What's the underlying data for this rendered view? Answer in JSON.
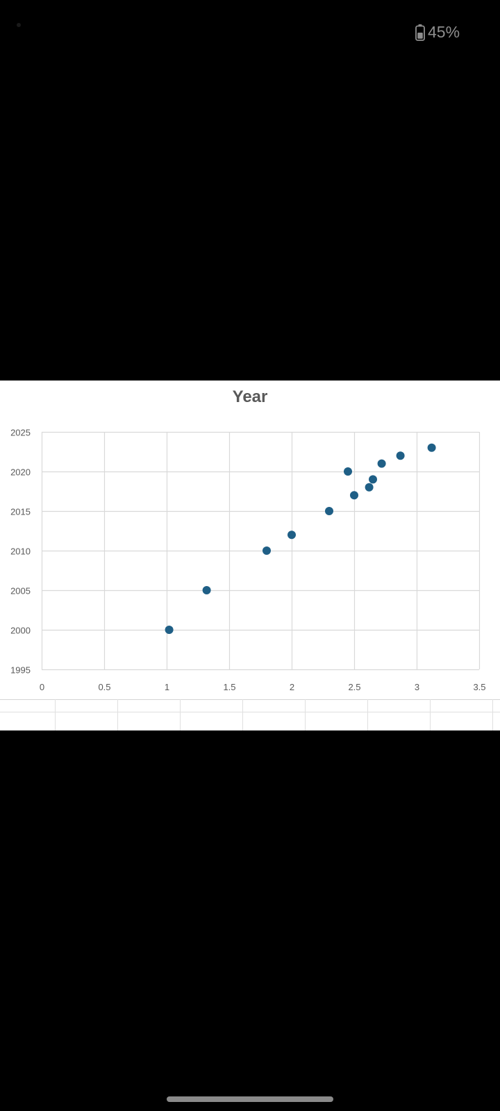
{
  "status_bar": {
    "battery_icon": "battery-icon",
    "battery_percent": "45%"
  },
  "chart_data": {
    "type": "scatter",
    "title": "Year",
    "xlabel": "",
    "ylabel": "",
    "xlim": [
      0,
      3.5
    ],
    "ylim": [
      1995,
      2025
    ],
    "x_ticks": [
      "0",
      "0.5",
      "1",
      "1.5",
      "2",
      "2.5",
      "3",
      "3.5"
    ],
    "y_ticks": [
      "1995",
      "2000",
      "2005",
      "2010",
      "2015",
      "2020",
      "2025"
    ],
    "grid": true,
    "legend": "none",
    "marker_color": "#1f5f86",
    "points": [
      {
        "x": 1.02,
        "y": 2000
      },
      {
        "x": 1.32,
        "y": 2005
      },
      {
        "x": 1.8,
        "y": 2010
      },
      {
        "x": 2.0,
        "y": 2012
      },
      {
        "x": 2.3,
        "y": 2015
      },
      {
        "x": 2.45,
        "y": 2020
      },
      {
        "x": 2.5,
        "y": 2017
      },
      {
        "x": 2.62,
        "y": 2018
      },
      {
        "x": 2.65,
        "y": 2019
      },
      {
        "x": 2.72,
        "y": 2021
      },
      {
        "x": 2.87,
        "y": 2022
      },
      {
        "x": 3.12,
        "y": 2023
      }
    ]
  }
}
